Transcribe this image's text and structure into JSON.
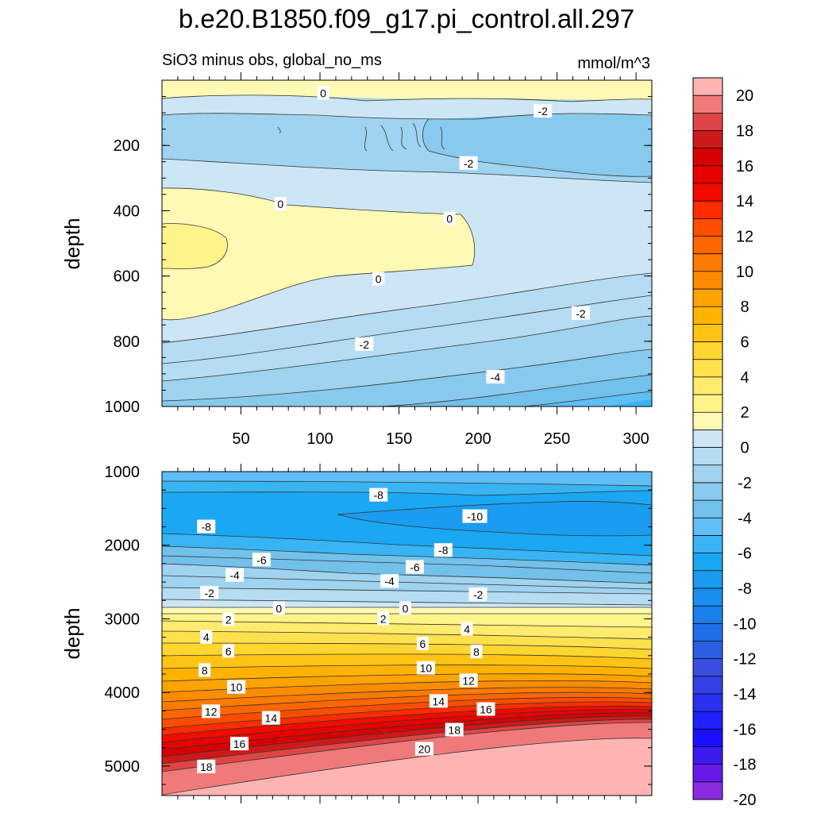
{
  "chart_data": [
    {
      "type": "contour",
      "panel": "upper",
      "title": "b.e20.B1850.f09_g17.pi_control.all.297",
      "subtitle_left": "SiO3 minus obs, global_no_ms",
      "subtitle_right": "mmol/m^3",
      "xlabel": "",
      "ylabel": "depth",
      "xlim": [
        0,
        310
      ],
      "ylim": [
        1000,
        0
      ],
      "x_ticks": [
        50,
        100,
        150,
        200,
        250,
        300
      ],
      "y_ticks": [
        200,
        400,
        600,
        800,
        1000
      ],
      "contour_labels": [
        {
          "text": "0",
          "x": 102,
          "depth": 40
        },
        {
          "text": "0",
          "x": 75,
          "depth": 380
        },
        {
          "text": "0",
          "x": 182,
          "depth": 425
        },
        {
          "text": "0",
          "x": 137,
          "depth": 610
        },
        {
          "text": "-2",
          "x": 241,
          "depth": 95
        },
        {
          "text": "-2",
          "x": 194,
          "depth": 255
        },
        {
          "text": "-2",
          "x": 265,
          "depth": 715
        },
        {
          "text": "-2",
          "x": 128,
          "depth": 810
        },
        {
          "text": "-4",
          "x": 211,
          "depth": 910
        }
      ]
    },
    {
      "type": "contour",
      "panel": "lower",
      "xlabel": "",
      "ylabel": "depth",
      "xlim": [
        0,
        310
      ],
      "ylim": [
        5400,
        1000
      ],
      "y_ticks": [
        1000,
        2000,
        3000,
        4000,
        5000
      ],
      "contour_labels": [
        {
          "text": "-8",
          "x": 137,
          "depth": 1320
        },
        {
          "text": "-10",
          "x": 198,
          "depth": 1610
        },
        {
          "text": "-8",
          "x": 28,
          "depth": 1750
        },
        {
          "text": "-8",
          "x": 178,
          "depth": 2070
        },
        {
          "text": "-6",
          "x": 63,
          "depth": 2200
        },
        {
          "text": "-6",
          "x": 160,
          "depth": 2300
        },
        {
          "text": "-4",
          "x": 46,
          "depth": 2410
        },
        {
          "text": "-4",
          "x": 144,
          "depth": 2490
        },
        {
          "text": "-2",
          "x": 30,
          "depth": 2650
        },
        {
          "text": "-2",
          "x": 200,
          "depth": 2670
        },
        {
          "text": "0",
          "x": 74,
          "depth": 2860
        },
        {
          "text": "0",
          "x": 154,
          "depth": 2860
        },
        {
          "text": "2",
          "x": 42,
          "depth": 3010
        },
        {
          "text": "2",
          "x": 140,
          "depth": 3000
        },
        {
          "text": "4",
          "x": 28,
          "depth": 3250
        },
        {
          "text": "4",
          "x": 193,
          "depth": 3140
        },
        {
          "text": "6",
          "x": 42,
          "depth": 3440
        },
        {
          "text": "6",
          "x": 165,
          "depth": 3340
        },
        {
          "text": "8",
          "x": 27,
          "depth": 3700
        },
        {
          "text": "8",
          "x": 199,
          "depth": 3450
        },
        {
          "text": "10",
          "x": 47,
          "depth": 3930
        },
        {
          "text": "10",
          "x": 167,
          "depth": 3670
        },
        {
          "text": "12",
          "x": 31,
          "depth": 4260
        },
        {
          "text": "12",
          "x": 194,
          "depth": 3840
        },
        {
          "text": "14",
          "x": 69,
          "depth": 4350
        },
        {
          "text": "14",
          "x": 175,
          "depth": 4120
        },
        {
          "text": "16",
          "x": 49,
          "depth": 4700
        },
        {
          "text": "16",
          "x": 205,
          "depth": 4230
        },
        {
          "text": "18",
          "x": 28,
          "depth": 5010
        },
        {
          "text": "18",
          "x": 185,
          "depth": 4510
        },
        {
          "text": "20",
          "x": 166,
          "depth": 4770
        }
      ]
    }
  ],
  "colorbar": {
    "tick_labels": [
      "20",
      "18",
      "16",
      "14",
      "12",
      "10",
      "8",
      "6",
      "4",
      "2",
      "0",
      "-2",
      "-4",
      "-6",
      "-8",
      "-10",
      "-12",
      "-14",
      "-16",
      "-18",
      "-20"
    ],
    "colors": [
      "#FFB3B3",
      "#F07A7A",
      "#E04545",
      "#CC1A1A",
      "#D70000",
      "#E80000",
      "#F50A00",
      "#FF2C00",
      "#FF4D00",
      "#FF6600",
      "#FF7A00",
      "#FF8C00",
      "#FFA300",
      "#FFB300",
      "#FFC413",
      "#FFD530",
      "#FFE14E",
      "#FFEB6E",
      "#FFF48A",
      "#FFF9B3",
      "#CDE6F5",
      "#B5DCF2",
      "#9FD3EF",
      "#88CAED",
      "#72C1EA",
      "#5EBEF5",
      "#38B4F5",
      "#1AA8F5",
      "#1A9CF0",
      "#1A8EF0",
      "#1A80EB",
      "#1F70E8",
      "#2A5FE3",
      "#3A4FE0",
      "#3441E5",
      "#2A30F0",
      "#2020FA",
      "#1A10FF",
      "#3C1AF0",
      "#6A1AE8",
      "#8A2BE2"
    ]
  }
}
